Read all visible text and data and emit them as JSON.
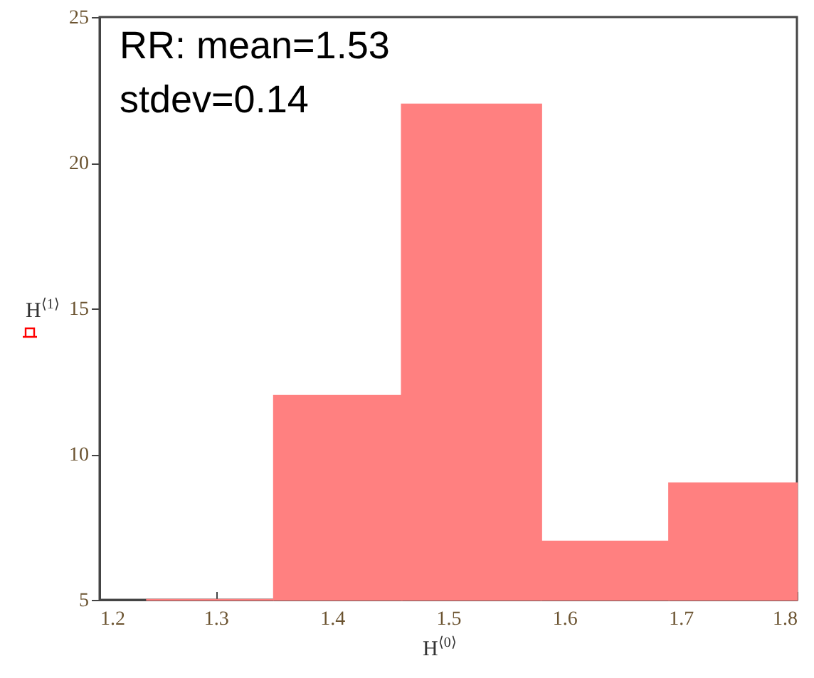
{
  "chart_data": {
    "type": "histogram",
    "xlabel": "H$^{⟨0⟩}$",
    "ylabel": "H$^{⟨1⟩}$",
    "bins": [
      1.24,
      1.35,
      1.46,
      1.58,
      1.69,
      1.8
    ],
    "values": [
      5,
      12,
      22,
      7,
      9
    ],
    "color": "#ff8080",
    "xlim": [
      1.2,
      1.8
    ],
    "xticks": [
      1.2,
      1.3,
      1.4,
      1.5,
      1.6,
      1.7,
      1.8
    ],
    "ylim": [
      5,
      25
    ],
    "yticks": [
      5,
      10,
      15,
      20,
      25
    ],
    "grid": false,
    "annotations": [
      "RR: mean=1.53",
      "stdev=0.14"
    ]
  }
}
